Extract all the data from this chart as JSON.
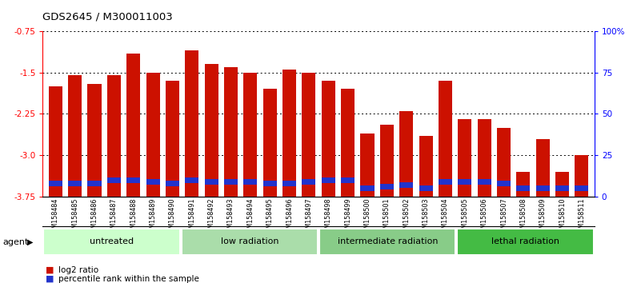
{
  "title": "GDS2645 / M300011003",
  "samples": [
    "GSM158484",
    "GSM158485",
    "GSM158486",
    "GSM158487",
    "GSM158488",
    "GSM158489",
    "GSM158490",
    "GSM158491",
    "GSM158492",
    "GSM158493",
    "GSM158494",
    "GSM158495",
    "GSM158496",
    "GSM158497",
    "GSM158498",
    "GSM158499",
    "GSM158500",
    "GSM158501",
    "GSM158502",
    "GSM158503",
    "GSM158504",
    "GSM158505",
    "GSM158506",
    "GSM158507",
    "GSM158508",
    "GSM158509",
    "GSM158510",
    "GSM158511"
  ],
  "log2_ratio": [
    -1.75,
    -1.55,
    -1.7,
    -1.55,
    -1.15,
    -1.5,
    -1.65,
    -1.1,
    -1.35,
    -1.4,
    -1.5,
    -1.8,
    -1.45,
    -1.5,
    -1.65,
    -1.8,
    -2.6,
    -2.45,
    -2.2,
    -2.65,
    -1.65,
    -2.35,
    -2.35,
    -2.5,
    -3.3,
    -2.7,
    -3.3,
    -3.0
  ],
  "percentile_rank": [
    8,
    8,
    8,
    10,
    10,
    9,
    8,
    10,
    9,
    9,
    9,
    8,
    8,
    9,
    10,
    10,
    5,
    6,
    7,
    5,
    9,
    9,
    9,
    8,
    5,
    5,
    5,
    5
  ],
  "groups": [
    {
      "label": "untreated",
      "start": 0,
      "end": 7,
      "color": "#ccffcc"
    },
    {
      "label": "low radiation",
      "start": 7,
      "end": 14,
      "color": "#aaddaa"
    },
    {
      "label": "intermediate radiation",
      "start": 14,
      "end": 21,
      "color": "#88cc88"
    },
    {
      "label": "lethal radiation",
      "start": 21,
      "end": 28,
      "color": "#44bb44"
    }
  ],
  "ymin": -3.75,
  "ymax": -0.75,
  "yticks_left": [
    -3.75,
    -3.0,
    -2.25,
    -1.5,
    -0.75
  ],
  "yticks_right": [
    0,
    25,
    50,
    75,
    100
  ],
  "ytick_right_labels": [
    "0",
    "25",
    "50",
    "75",
    "100%"
  ],
  "bar_color": "#cc1100",
  "marker_color": "#2233cc",
  "agent_label": "agent",
  "legend_log2": "log2 ratio",
  "legend_pct": "percentile rank within the sample",
  "bar_width": 0.7
}
